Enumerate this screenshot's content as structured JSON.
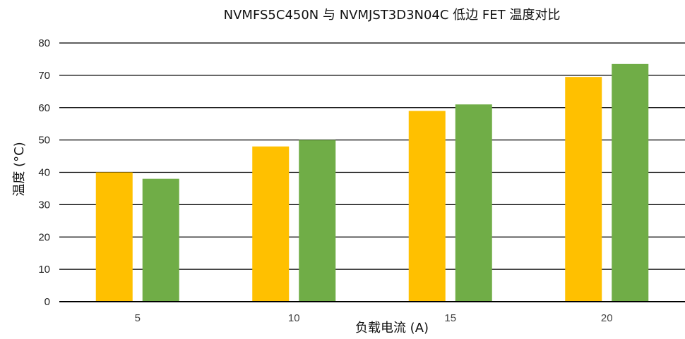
{
  "chart_data": {
    "type": "bar",
    "title": "NVMFS5C450N 与 NVMJST3D3N04C 低边 FET 温度对比",
    "xlabel": "负载电流 (A)",
    "ylabel": "温度 (°C)",
    "categories": [
      "5",
      "10",
      "15",
      "20"
    ],
    "series": [
      {
        "values": [
          40,
          48,
          59,
          69.5
        ],
        "color": "#FFC000"
      },
      {
        "values": [
          38,
          50,
          61,
          73.5
        ],
        "color": "#70AD47"
      }
    ],
    "ylim": [
      0,
      80
    ],
    "yticks": [
      "0",
      "10",
      "20",
      "30",
      "40",
      "50",
      "60",
      "70",
      "80"
    ],
    "grid": true,
    "legend": "none"
  }
}
